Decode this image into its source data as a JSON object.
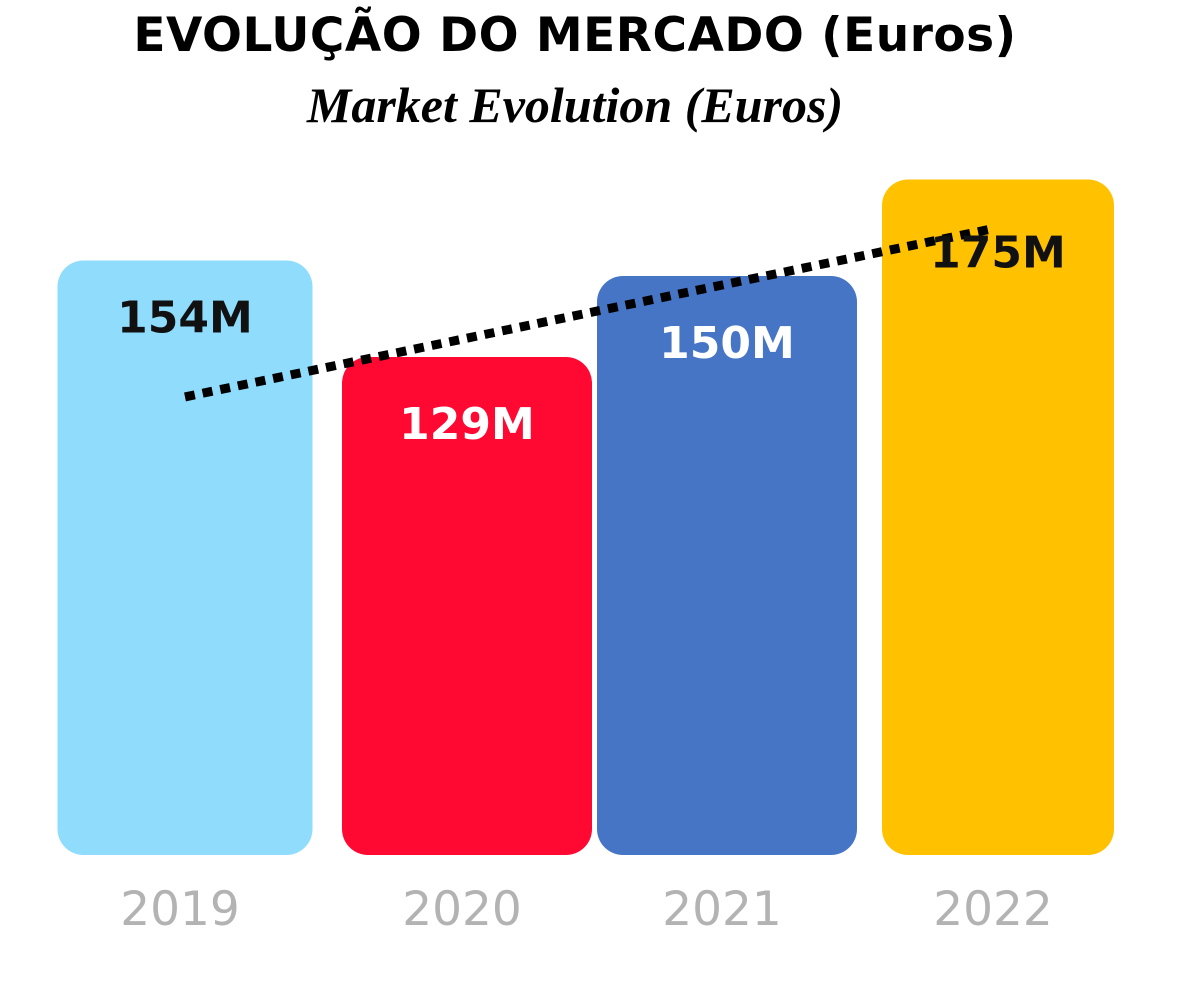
{
  "title": "EVOLUÇÃO DO MERCADO (Euros)",
  "subtitle": "Market Evolution (Euros)",
  "chart_data": {
    "type": "bar",
    "categories": [
      "2019",
      "2020",
      "2021",
      "2022"
    ],
    "values": [
      154,
      129,
      150,
      175
    ],
    "value_labels": [
      "154M",
      "129M",
      "150M",
      "175M"
    ],
    "unit": "M",
    "colors": [
      "#8fdcfd",
      "#ff0933",
      "#4675c6",
      "#ffc100"
    ],
    "label_colors": [
      "#111111",
      "#ffffff",
      "#ffffff",
      "#111111"
    ],
    "trendline": {
      "style": "dotted",
      "color": "#000000"
    },
    "grid": false,
    "legend": "none"
  }
}
